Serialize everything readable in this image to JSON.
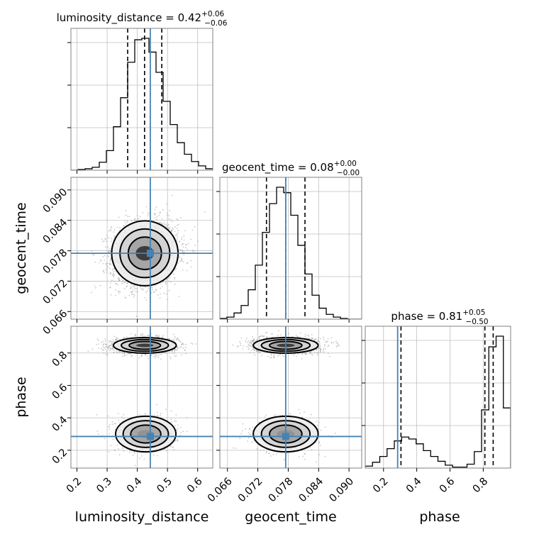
{
  "chart_data": {
    "type": "corner",
    "parameters": [
      "luminosity_distance",
      "geocent_time",
      "phase"
    ],
    "truth": {
      "luminosity_distance": 0.443,
      "geocent_time": 0.0775,
      "phase": 0.285
    },
    "truth_color": "#4682b4",
    "titles": [
      {
        "name": "luminosity_distance",
        "median": "0.42",
        "plus": "+0.06",
        "minus": "−0.06"
      },
      {
        "name": "geocent_time",
        "median": "0.08",
        "plus": "+0.00",
        "minus": "−0.00"
      },
      {
        "name": "phase",
        "median": "0.81",
        "plus": "+0.05",
        "minus": "−0.50"
      }
    ],
    "quantiles": {
      "luminosity_distance": [
        0.368,
        0.424,
        0.481
      ],
      "geocent_time": [
        0.0737,
        0.0775,
        0.0813
      ],
      "phase": [
        0.305,
        0.81,
        0.86
      ]
    },
    "ranges": {
      "luminosity_distance": [
        0.18,
        0.65
      ],
      "geocent_time": [
        0.0645,
        0.0925
      ],
      "phase": [
        0.09,
        0.965
      ]
    },
    "ticks": {
      "luminosity_distance": [
        "0.2",
        "0.3",
        "0.4",
        "0.5",
        "0.6"
      ],
      "geocent_time": [
        "0.066",
        "0.072",
        "0.078",
        "0.084",
        "0.090"
      ],
      "phase": [
        "0.2",
        "0.4",
        "0.6",
        "0.8"
      ]
    },
    "histograms": {
      "luminosity_distance": {
        "edges_range": [
          0.18,
          0.65
        ],
        "counts": [
          0,
          1,
          2,
          4,
          11,
          27,
          60,
          100,
          149,
          180,
          182,
          163,
          135,
          95,
          63,
          38,
          22,
          12,
          6,
          2
        ]
      },
      "geocent_time": {
        "edges_range": [
          0.0645,
          0.0925
        ],
        "counts": [
          1,
          3,
          9,
          20,
          43,
          79,
          127,
          169,
          193,
          185,
          152,
          108,
          66,
          35,
          16,
          7,
          3,
          1,
          0,
          0
        ]
      },
      "phase": {
        "edges_range": [
          0.09,
          0.965
        ],
        "counts": [
          2,
          6,
          12,
          20,
          28,
          32,
          30,
          25,
          18,
          12,
          7,
          3,
          1,
          1,
          4,
          17,
          60,
          125,
          136,
          62
        ]
      }
    },
    "contours_2d": {
      "geocent_time_vs_luminosity_distance": {
        "center": [
          0.425,
          0.0775
        ],
        "sigma": [
          0.055,
          0.0032
        ],
        "corr": 0.1
      },
      "phase_vs_luminosity_distance": {
        "modes": [
          {
            "weight": 0.74,
            "center": [
              0.425,
              0.847
            ],
            "sigma": [
              0.052,
              0.024
            ]
          },
          {
            "weight": 0.26,
            "center": [
              0.428,
              0.3
            ],
            "sigma": [
              0.05,
              0.055
            ]
          }
        ]
      },
      "phase_vs_geocent_time": {
        "modes": [
          {
            "weight": 0.74,
            "center": [
              0.0775,
              0.847
            ],
            "sigma": [
              0.0032,
              0.024
            ]
          },
          {
            "weight": 0.26,
            "center": [
              0.0775,
              0.3
            ],
            "sigma": [
              0.0032,
              0.055
            ]
          }
        ]
      }
    },
    "grid": true
  }
}
